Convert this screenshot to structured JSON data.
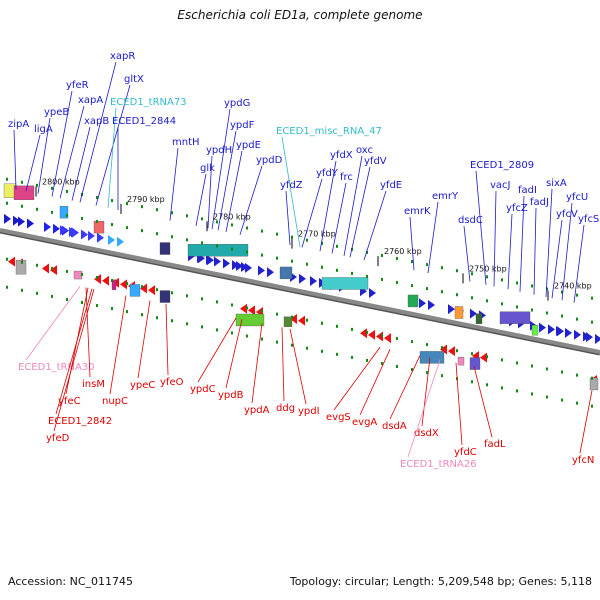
{
  "title": "Escherichia coli ED1a, complete genome",
  "footer": {
    "accession": "Accession: NC_011745",
    "summary": "Topology: circular; Length: 5,209,548 bp; Genes: 5,118"
  },
  "colors": {
    "forward_label": "#1a1acc",
    "reverse_label": "#dd0000",
    "rna_label": "#33bbcc",
    "trna_reverse_label": "#ee88bb",
    "backbone": "#888888",
    "tick": "#118811"
  },
  "ticks": [
    "2800 kbp",
    "2790 kbp",
    "2780 kbp",
    "2770 kbp",
    "2760 kbp",
    "2750 kbp",
    "2740 kbp"
  ],
  "genes_top": [
    {
      "name": "zipA",
      "kind": "forward"
    },
    {
      "name": "ligA",
      "kind": "forward"
    },
    {
      "name": "ypeB",
      "kind": "forward"
    },
    {
      "name": "yfeR",
      "kind": "forward"
    },
    {
      "name": "xapA",
      "kind": "forward"
    },
    {
      "name": "xapB",
      "kind": "forward"
    },
    {
      "name": "xapR",
      "kind": "forward"
    },
    {
      "name": "gltX",
      "kind": "forward"
    },
    {
      "name": "ECED1_tRNA73",
      "kind": "rna"
    },
    {
      "name": "ECED1_2844",
      "kind": "forward"
    },
    {
      "name": "mntH",
      "kind": "forward"
    },
    {
      "name": "glk",
      "kind": "forward"
    },
    {
      "name": "ypdH",
      "kind": "forward"
    },
    {
      "name": "ypdG",
      "kind": "forward"
    },
    {
      "name": "ypdF",
      "kind": "forward"
    },
    {
      "name": "ypdE",
      "kind": "forward"
    },
    {
      "name": "ypdD",
      "kind": "forward"
    },
    {
      "name": "ECED1_misc_RNA_47",
      "kind": "rna"
    },
    {
      "name": "yfdZ",
      "kind": "forward"
    },
    {
      "name": "yfdY",
      "kind": "forward"
    },
    {
      "name": "yfdX",
      "kind": "forward"
    },
    {
      "name": "frc",
      "kind": "forward"
    },
    {
      "name": "oxc",
      "kind": "forward"
    },
    {
      "name": "yfdV",
      "kind": "forward"
    },
    {
      "name": "yfdE",
      "kind": "forward"
    },
    {
      "name": "emrK",
      "kind": "forward"
    },
    {
      "name": "emrY",
      "kind": "forward"
    },
    {
      "name": "dsdC",
      "kind": "forward"
    },
    {
      "name": "ECED1_2809",
      "kind": "forward"
    },
    {
      "name": "vacJ",
      "kind": "forward"
    },
    {
      "name": "yfcZ",
      "kind": "forward"
    },
    {
      "name": "fadI",
      "kind": "forward"
    },
    {
      "name": "fadJ",
      "kind": "forward"
    },
    {
      "name": "sixA",
      "kind": "forward"
    },
    {
      "name": "yfcV",
      "kind": "forward"
    },
    {
      "name": "yfcU",
      "kind": "forward"
    },
    {
      "name": "yfcS",
      "kind": "forward"
    }
  ],
  "genes_bottom": [
    {
      "name": "ECED1_tRNA30",
      "kind": "trna"
    },
    {
      "name": "insM",
      "kind": "reverse"
    },
    {
      "name": "yfeC",
      "kind": "reverse"
    },
    {
      "name": "ECED1_2842",
      "kind": "reverse"
    },
    {
      "name": "yfeD",
      "kind": "reverse"
    },
    {
      "name": "nupC",
      "kind": "reverse"
    },
    {
      "name": "ypeC",
      "kind": "reverse"
    },
    {
      "name": "yfeO",
      "kind": "reverse"
    },
    {
      "name": "ypdC",
      "kind": "reverse"
    },
    {
      "name": "ypdB",
      "kind": "reverse"
    },
    {
      "name": "ypdA",
      "kind": "reverse"
    },
    {
      "name": "ddg",
      "kind": "reverse"
    },
    {
      "name": "ypdI",
      "kind": "reverse"
    },
    {
      "name": "evgS",
      "kind": "reverse"
    },
    {
      "name": "evgA",
      "kind": "reverse"
    },
    {
      "name": "dsdA",
      "kind": "reverse"
    },
    {
      "name": "dsdX",
      "kind": "reverse"
    },
    {
      "name": "ECED1_tRNA26",
      "kind": "trna"
    },
    {
      "name": "yfdC",
      "kind": "reverse"
    },
    {
      "name": "fadL",
      "kind": "reverse"
    },
    {
      "name": "yfcN",
      "kind": "reverse"
    }
  ]
}
